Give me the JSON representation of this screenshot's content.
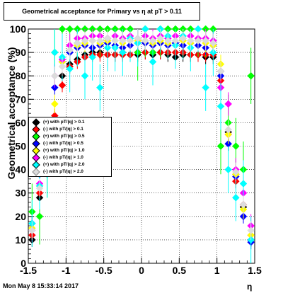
{
  "title": "Geometrical acceptance for Primary vs η at pT > 0.11",
  "timestamp": "Mon May  8 15:33:14 2017",
  "chart_data": {
    "type": "scatter",
    "xlabel": "η",
    "ylabel": "Geometrical acceptance (%)",
    "xlim": [
      -1.5,
      1.5
    ],
    "ylim": [
      0,
      100
    ],
    "xticks": [
      "-1.5",
      "-1",
      "-0.5",
      "0",
      "0.5",
      "1",
      "1.5"
    ],
    "yticks": [
      "0",
      "10",
      "20",
      "30",
      "40",
      "50",
      "60",
      "70",
      "80",
      "90",
      "100"
    ],
    "grid": true,
    "legend_position": "left",
    "series": [
      {
        "name": "(+) with pT/|q| > 0.1",
        "color": "#000000",
        "x": [
          -1.45,
          -1.35,
          -1.25,
          -1.15,
          -1.05,
          -0.95,
          -0.85,
          -0.75,
          -0.65,
          -0.55,
          -0.45,
          -0.35,
          -0.25,
          -0.15,
          -0.05,
          0.05,
          0.15,
          0.25,
          0.35,
          0.45,
          0.55,
          0.65,
          0.75,
          0.85,
          0.95,
          1.05,
          1.15,
          1.25,
          1.35,
          1.45
        ],
        "y": [
          10,
          28,
          40,
          62,
          80,
          85,
          87,
          89,
          90,
          90,
          89,
          89,
          90,
          89,
          89,
          90,
          89,
          90,
          89,
          88,
          89,
          89,
          89,
          88,
          88,
          82,
          56,
          38,
          24,
          10
        ]
      },
      {
        "name": "(-) with pT/|q| > 0.1",
        "color": "#ff0000",
        "x": [
          -1.45,
          -1.35,
          -1.25,
          -1.15,
          -1.05,
          -0.95,
          -0.85,
          -0.75,
          -0.65,
          -0.55,
          -0.45,
          -0.35,
          -0.25,
          -0.15,
          -0.05,
          0.05,
          0.15,
          0.25,
          0.35,
          0.45,
          0.55,
          0.65,
          0.75,
          0.85,
          0.95,
          1.05,
          1.15,
          1.25,
          1.35,
          1.45
        ],
        "y": [
          12,
          30,
          43,
          63,
          76,
          84,
          86,
          88,
          89,
          89,
          89,
          89,
          89,
          89,
          90,
          90,
          90,
          90,
          90,
          90,
          90,
          89,
          89,
          89,
          89,
          78,
          55,
          35,
          25,
          12
        ]
      },
      {
        "name": "(+) with pT/|q| > 0.5",
        "color": "#00ff00",
        "x": [
          -1.45,
          -1.35,
          -1.25,
          -1.15,
          -1.05,
          -0.95,
          -0.85,
          -0.75,
          -0.65,
          -0.55,
          -0.45,
          -0.35,
          -0.25,
          -0.15,
          -0.05,
          0.05,
          0.15,
          0.25,
          0.35,
          0.45,
          0.55,
          0.65,
          0.75,
          0.85,
          0.95,
          1.05,
          1.15,
          1.25,
          1.35,
          1.45
        ],
        "y": [
          22,
          20,
          40,
          90,
          100,
          100,
          100,
          100,
          100,
          100,
          100,
          100,
          100,
          100,
          90,
          100,
          90,
          100,
          100,
          100,
          100,
          100,
          100,
          100,
          100,
          50,
          60,
          50,
          40,
          80
        ]
      },
      {
        "name": "(-) with pT/|q| > 0.5",
        "color": "#0000ff",
        "x": [
          -1.45,
          -1.35,
          -1.25,
          -1.15,
          -1.05,
          -0.95,
          -0.85,
          -0.75,
          -0.65,
          -0.55,
          -0.45,
          -0.35,
          -0.25,
          -0.15,
          -0.05,
          0.05,
          0.15,
          0.25,
          0.35,
          0.45,
          0.55,
          0.65,
          0.75,
          0.85,
          0.95,
          1.05,
          1.15,
          1.25,
          1.35,
          1.45
        ],
        "y": [
          17,
          38,
          50,
          75,
          86,
          90,
          92,
          93,
          92,
          93,
          94,
          93,
          92,
          93,
          94,
          94,
          93,
          94,
          93,
          94,
          93,
          94,
          93,
          92,
          93,
          80,
          51,
          37,
          20,
          9
        ]
      },
      {
        "name": "(+) with pT/|q| > 1.0",
        "color": "#ffff00",
        "x": [
          -1.45,
          -1.35,
          -1.25,
          -1.15,
          -1.05,
          -0.95,
          -0.85,
          -0.75,
          -0.65,
          -0.55,
          -0.45,
          -0.35,
          -0.25,
          -0.15,
          -0.05,
          0.05,
          0.15,
          0.25,
          0.35,
          0.45,
          0.55,
          0.65,
          0.75,
          0.85,
          0.95,
          1.05,
          1.15,
          1.25,
          1.35,
          1.45
        ],
        "y": [
          15,
          33,
          45,
          68,
          86,
          91,
          93,
          94,
          95,
          94,
          95,
          95,
          94,
          95,
          95,
          95,
          94,
          95,
          94,
          95,
          95,
          94,
          95,
          94,
          93,
          85,
          55,
          38,
          23,
          12
        ]
      },
      {
        "name": "(-) with pT/|q| > 1.0",
        "color": "#ff00ff",
        "x": [
          -1.45,
          -1.35,
          -1.25,
          -1.15,
          -1.05,
          -0.95,
          -0.85,
          -0.75,
          -0.65,
          -0.55,
          -0.45,
          -0.35,
          -0.25,
          -0.15,
          -0.05,
          0.05,
          0.15,
          0.25,
          0.35,
          0.45,
          0.55,
          0.65,
          0.75,
          0.85,
          0.95,
          1.05,
          1.15,
          1.25,
          1.35,
          1.45
        ],
        "y": [
          14,
          34,
          46,
          80,
          87,
          93,
          96,
          96,
          97,
          97,
          96,
          97,
          96,
          97,
          96,
          97,
          96,
          97,
          96,
          97,
          96,
          97,
          96,
          96,
          95,
          75,
          68,
          40,
          30,
          16
        ]
      },
      {
        "name": "(+) with pT/|q| > 2.0",
        "color": "#00ffff",
        "x": [
          -1.45,
          -1.35,
          -1.25,
          -1.15,
          -1.05,
          -0.95,
          -0.85,
          -0.75,
          -0.65,
          -0.55,
          -0.45,
          -0.35,
          -0.25,
          -0.15,
          -0.05,
          0.05,
          0.15,
          0.25,
          0.35,
          0.45,
          0.55,
          0.65,
          0.75,
          0.85,
          0.95,
          1.05,
          1.15,
          1.25,
          1.35,
          1.45
        ],
        "y": [
          17,
          33,
          38,
          90,
          88,
          83,
          94,
          80,
          88,
          75,
          92,
          92,
          90,
          96,
          94,
          100,
          86,
          100,
          97,
          93,
          97,
          92,
          100,
          75,
          90,
          67,
          40,
          28,
          34,
          10
        ]
      },
      {
        "name": "(-) with pT/|q| > 2.0",
        "color": "#dcdcdc",
        "x": [
          -1.45,
          -1.35,
          -1.25,
          -1.15,
          -1.05,
          -0.95,
          -0.85,
          -0.75,
          -0.65,
          -0.55,
          -0.45,
          -0.35,
          -0.25,
          -0.15,
          -0.05,
          0.05,
          0.15,
          0.25,
          0.35,
          0.45,
          0.55,
          0.65,
          0.75,
          0.85,
          0.95,
          1.05,
          1.15,
          1.25,
          1.35,
          1.45
        ],
        "y": [
          14,
          32,
          47,
          80,
          84,
          91,
          94,
          95,
          95,
          95,
          96,
          95,
          95,
          95,
          96,
          95,
          95,
          96,
          95,
          95,
          96,
          95,
          95,
          95,
          94,
          82,
          57,
          39,
          25,
          14
        ]
      }
    ]
  }
}
